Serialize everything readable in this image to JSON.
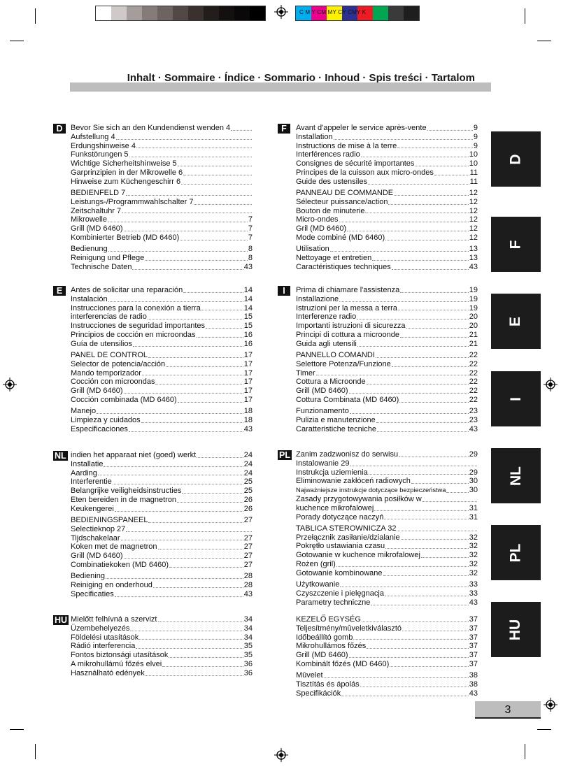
{
  "print_marks": {
    "gray_swatches": [
      "#ffffff",
      "#cfc9c7",
      "#a59d9b",
      "#857c7a",
      "#6d6361",
      "#534845",
      "#3a302d",
      "#231d1b",
      "#141010",
      "#0a0808",
      "#000000"
    ],
    "color_swatches": [
      "#00aeef",
      "#ec008c",
      "#fff200",
      "#2e3192",
      "#ed1c24",
      "#00a651",
      "#3a3a3a",
      "#1e1e1e"
    ],
    "cmyk_label": "C M Y CM MY CY CMY K"
  },
  "header": {
    "title": "Inhalt · Sommaire · Índice · Sommario · Inhoud · Spis treści · Tartalom"
  },
  "sections": {
    "D": {
      "badge": "D",
      "groups": [
        [
          {
            "t": "Bevor Sie sich an den Kundendienst wenden 4",
            "p": ""
          },
          {
            "t": "Aufstellung 4",
            "p": ""
          },
          {
            "t": "Erdungshinweise 4",
            "p": ""
          },
          {
            "t": "Funkstörungen 5",
            "p": ""
          },
          {
            "t": "Wichtige Sicherheitshinweise 5",
            "p": ""
          },
          {
            "t": "Garprinzipien in der Mikrowelle 6",
            "p": ""
          },
          {
            "t": "Hinweise zum Küchengeschirr 6",
            "p": ""
          }
        ],
        [
          {
            "t": "BEDIENFELD 7",
            "p": ""
          },
          {
            "t": "Leistungs-/Programmwahlschalter 7",
            "p": ""
          },
          {
            "t": "Zeitschaltuhr 7",
            "p": ""
          },
          {
            "t": "Mikrowelle",
            "p": "7"
          },
          {
            "t": "Grill (MD 6460)",
            "p": "7"
          },
          {
            "t": "Kombinierter Betrieb (MD 6460)",
            "p": "7"
          }
        ],
        [
          {
            "t": "Bedienung",
            "p": "8"
          },
          {
            "t": "Reinigung und Pflege",
            "p": "8"
          },
          {
            "t": "Technische Daten",
            "p": "43"
          }
        ]
      ]
    },
    "F": {
      "badge": "F",
      "groups": [
        [
          {
            "t": "Avant d'appeler le service après-vente",
            "p": "9"
          },
          {
            "t": "Installation",
            "p": "9"
          },
          {
            "t": "Instructions de mise à la terre",
            "p": "9"
          },
          {
            "t": "Interférences radio",
            "p": "10"
          },
          {
            "t": "Consignes de sécurité importantes",
            "p": "10"
          },
          {
            "t": "Principes de la cuisson aux micro-ondes",
            "p": "11"
          },
          {
            "t": "Guide des ustensiles",
            "p": "11"
          }
        ],
        [
          {
            "t": "PANNEAU DE COMMANDE",
            "p": "12"
          },
          {
            "t": "Sélecteur puissance/action",
            "p": "12"
          },
          {
            "t": "Bouton de minuterie",
            "p": "12"
          },
          {
            "t": "Micro-ondes",
            "p": "12"
          },
          {
            "t": "Gril (MD 6460)",
            "p": "12"
          },
          {
            "t": "Mode combiné (MD 6460)",
            "p": "12"
          }
        ],
        [
          {
            "t": "Utilisation",
            "p": "13"
          },
          {
            "t": "Nettoyage et entretien",
            "p": "13"
          },
          {
            "t": "Caractéristiques techniques",
            "p": "43"
          }
        ]
      ]
    },
    "E": {
      "badge": "E",
      "groups": [
        [
          {
            "t": "Antes de solicitar una reparación",
            "p": "14"
          },
          {
            "t": "Instalación",
            "p": "14"
          },
          {
            "t": "Instrucciones para la conexión a tierra",
            "p": "14"
          },
          {
            "t": "interferencias de radio",
            "p": "15"
          },
          {
            "t": "Instrucciones de seguridad importantes",
            "p": "15"
          },
          {
            "t": "Principios de cocción en microondas",
            "p": "16"
          },
          {
            "t": "Guía de utensilios",
            "p": "16"
          }
        ],
        [
          {
            "t": "PANEL DE CONTROL",
            "p": "17"
          },
          {
            "t": "Selector de potencia/acción",
            "p": "17"
          },
          {
            "t": "Mando temporizador",
            "p": "17"
          },
          {
            "t": "Cocción con microondas",
            "p": "17"
          },
          {
            "t": "Grill (MD 6460)",
            "p": "17"
          },
          {
            "t": "Cocción combinada (MD 6460)",
            "p": "17"
          }
        ],
        [
          {
            "t": "Manejo",
            "p": "18"
          },
          {
            "t": "Limpieza y cuidados",
            "p": "18"
          },
          {
            "t": "Especificaciones",
            "p": "43"
          }
        ]
      ]
    },
    "I": {
      "badge": "I",
      "groups": [
        [
          {
            "t": "Prima di chiamare l'assistenza",
            "p": "19"
          },
          {
            "t": "Installazione",
            "p": "19"
          },
          {
            "t": "Istruzioni per la messa a terra",
            "p": "19"
          },
          {
            "t": "Interferenze radio",
            "p": "20"
          },
          {
            "t": "Importanti istruzioni di sicurezza",
            "p": "20"
          },
          {
            "t": "Principi di cottura a microonde",
            "p": "21"
          },
          {
            "t": "Guida agli utensili",
            "p": "21"
          }
        ],
        [
          {
            "t": "PANNELLO COMANDI",
            "p": "22"
          },
          {
            "t": "Selettore Potenza/Funzione",
            "p": "22"
          },
          {
            "t": "Timer",
            "p": "22"
          },
          {
            "t": "Cottura a Microonde",
            "p": "22"
          },
          {
            "t": "Grill (MD 6460)",
            "p": "22"
          },
          {
            "t": "Cottura Combinata (MD 6460)",
            "p": "22"
          }
        ],
        [
          {
            "t": "Funzionamento",
            "p": "23"
          },
          {
            "t": "Pulizia e manutenzione",
            "p": "23"
          },
          {
            "t": "Caratteristiche tecniche",
            "p": "43"
          }
        ]
      ]
    },
    "NL": {
      "badge": "NL",
      "groups": [
        [
          {
            "t": "indien het apparaat niet (goed) werkt",
            "p": "24"
          },
          {
            "t": "Installatie",
            "p": "24"
          },
          {
            "t": "Aarding",
            "p": "24"
          },
          {
            "t": "Interferentie",
            "p": "25"
          },
          {
            "t": "Belangrijke veiligheidsinstructies",
            "p": "25"
          },
          {
            "t": "Eten bereiden in de magnetron",
            "p": "26"
          },
          {
            "t": "Keukengerei",
            "p": "26"
          }
        ],
        [
          {
            "t": "BEDIENINGSPANEEL",
            "p": "27"
          },
          {
            "t": "Selectieknop 27",
            "p": ""
          },
          {
            "t": "Tijdschakelaar",
            "p": "27"
          },
          {
            "t": "Koken met de magnetron",
            "p": "27"
          },
          {
            "t": "Grill (MD 6460)",
            "p": "27"
          },
          {
            "t": "Combinatiekoken (MD 6460)",
            "p": "27"
          }
        ],
        [
          {
            "t": "Bediening",
            "p": "28"
          },
          {
            "t": "Reiniging en onderhoud",
            "p": "28"
          },
          {
            "t": "Specificaties",
            "p": "43"
          }
        ]
      ]
    },
    "PL": {
      "badge": "PL",
      "groups": [
        [
          {
            "t": "Zanim zadzwonisz do serwisu",
            "p": "29"
          },
          {
            "t": "Instalowanie     29",
            "p": ""
          },
          {
            "t": "Instrukcja uziemienia",
            "p": "29"
          },
          {
            "t": "Eliminowanie zakłóceń radiowych",
            "p": "30"
          },
          {
            "t": "Najważniejsze instrukcje dotyczące bezpieczeństwa",
            "p": "30",
            "small": true
          },
          {
            "t": "Zasady przygotowywania posiłków w",
            "p": ""
          },
          {
            "t": "kuchence mikrofalowej",
            "p": "31"
          },
          {
            "t": "Porady dotyczące naczyń",
            "p": "31"
          }
        ],
        [
          {
            "t": "TABLICA STEROWNICZA      32",
            "p": ""
          },
          {
            "t": "Przełącznik zasiłanie/dzialanie",
            "p": "32"
          },
          {
            "t": "Pokrętło ustawiania czasu",
            "p": "32"
          },
          {
            "t": "Gotowanie w kuchence mikrofalowej",
            "p": "32"
          },
          {
            "t": "Rożen (gril)",
            "p": "32"
          },
          {
            "t": "Gotowanie kombinowane",
            "p": "32"
          }
        ],
        [
          {
            "t": "Użytkowanie",
            "p": "33"
          },
          {
            "t": "Czyszczenie i pielęgnacja",
            "p": "33"
          },
          {
            "t": "Parametry techniczne",
            "p": "43"
          }
        ]
      ]
    },
    "HU": {
      "badge": "HU",
      "groups": [
        [
          {
            "t": "Mielőtt felhívná a szervizt",
            "p": "34"
          },
          {
            "t": "Üzembehelyezés",
            "p": "34"
          },
          {
            "t": "Földelési utasítások",
            "p": "34"
          },
          {
            "t": "Rádió interferencia",
            "p": "35"
          },
          {
            "t": "Fontos biztonsági utasítások",
            "p": "35"
          },
          {
            "t": "A mikrohullámú főzés elvei",
            "p": "36"
          },
          {
            "t": "Használható edények",
            "p": "36"
          }
        ]
      ]
    },
    "HU2": {
      "groups": [
        [
          {
            "t": "KEZELŐ EGYSÉG",
            "p": "37"
          },
          {
            "t": "Teljesítmény/mûveletkiválasztó",
            "p": "37"
          },
          {
            "t": "Időbeállító gomb",
            "p": "37"
          },
          {
            "t": "Mikrohullámos főzés",
            "p": "37"
          },
          {
            "t": "Grill (MD 6460)",
            "p": "37"
          },
          {
            "t": "Kombinált főzés (MD 6460)",
            "p": "37"
          }
        ],
        [
          {
            "t": "Mûvelet",
            "p": "38"
          },
          {
            "t": "Tisztítás és ápolás",
            "p": "38"
          },
          {
            "t": "Specifikációk",
            "p": "43"
          }
        ]
      ]
    }
  },
  "side_tabs": [
    "D",
    "F",
    "E",
    "I",
    "NL",
    "PL",
    "HU"
  ],
  "page_number": "3"
}
